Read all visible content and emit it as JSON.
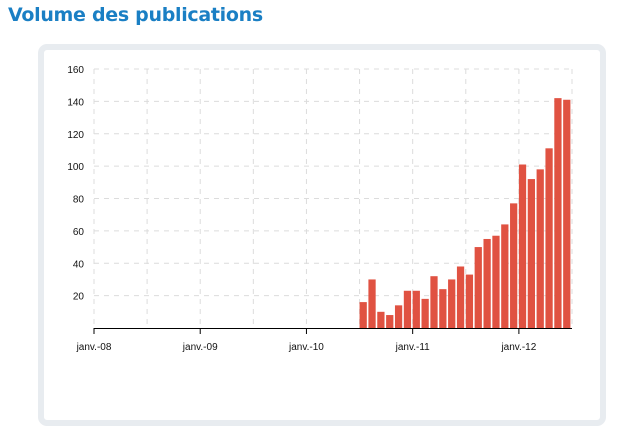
{
  "page": {
    "title": "Volume des publications",
    "title_color": "#1a7fc4",
    "accent_color": "#e05242"
  },
  "chart_data": {
    "type": "bar",
    "title": "",
    "xlabel": "",
    "ylabel": "",
    "ylim": [
      0,
      160
    ],
    "yticks": [
      20,
      40,
      60,
      80,
      100,
      120,
      140,
      160
    ],
    "xlim": [
      "2008-01",
      "2012-06"
    ],
    "xtick_labels": [
      {
        "label": "janv.-08",
        "date": "2008-01"
      },
      {
        "label": "janv.-09",
        "date": "2009-01"
      },
      {
        "label": "janv.-10",
        "date": "2010-01"
      },
      {
        "label": "janv.-11",
        "date": "2011-01"
      },
      {
        "label": "janv.-12",
        "date": "2012-01"
      }
    ],
    "grid": true,
    "bar_color": "#e05242",
    "x": [
      "2010-07",
      "2010-08",
      "2010-09",
      "2010-10",
      "2010-11",
      "2010-12",
      "2011-01",
      "2011-02",
      "2011-03",
      "2011-04",
      "2011-05",
      "2011-06",
      "2011-07",
      "2011-08",
      "2011-09",
      "2011-10",
      "2011-11",
      "2011-12",
      "2012-01",
      "2012-02",
      "2012-03",
      "2012-04",
      "2012-05",
      "2012-06"
    ],
    "values": [
      16,
      30,
      10,
      8,
      14,
      23,
      23,
      18,
      32,
      24,
      30,
      38,
      33,
      50,
      55,
      57,
      64,
      77,
      101,
      92,
      98,
      111,
      142,
      141
    ]
  }
}
